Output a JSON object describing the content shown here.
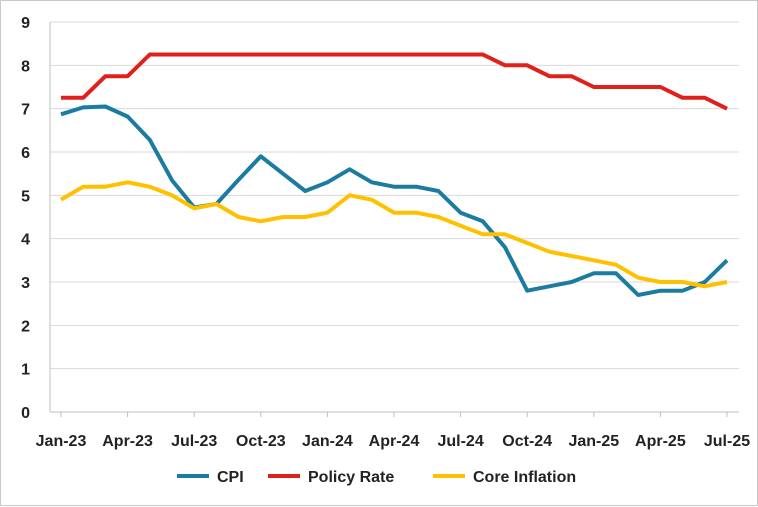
{
  "chart_data": {
    "type": "line",
    "title": "",
    "xlabel": "",
    "ylabel": "",
    "ylim": [
      0,
      9
    ],
    "yticks": [
      "0",
      "1",
      "2",
      "3",
      "4",
      "5",
      "6",
      "7",
      "8",
      "9"
    ],
    "xticks": [
      {
        "label": "Jan-23",
        "month": 0
      },
      {
        "label": "Apr-23",
        "month": 3
      },
      {
        "label": "Jul-23",
        "month": 6
      },
      {
        "label": "Oct-23",
        "month": 9
      },
      {
        "label": "Jan-24",
        "month": 12
      },
      {
        "label": "Apr-24",
        "month": 15
      },
      {
        "label": "Jul-24",
        "month": 18
      },
      {
        "label": "Oct-24",
        "month": 21
      },
      {
        "label": "Jan-25",
        "month": 24
      },
      {
        "label": "Apr-25",
        "month": 27
      },
      {
        "label": "Jul-25",
        "month": 30
      }
    ],
    "grid": true,
    "legend": "bottom",
    "series": [
      {
        "name": "CPI",
        "color": "#1B7BA0",
        "values": [
          6.87,
          7.03,
          7.05,
          6.82,
          6.28,
          5.35,
          4.72,
          4.8,
          5.36,
          5.9,
          5.5,
          5.1,
          5.3,
          5.6,
          5.3,
          5.2,
          5.2,
          5.1,
          4.6,
          4.4,
          3.8,
          2.8,
          2.9,
          3.0,
          3.2,
          3.2,
          2.7,
          2.8,
          2.8,
          3.0,
          3.5
        ]
      },
      {
        "name": "Policy Rate",
        "color": "#E0201B",
        "values": [
          7.25,
          7.25,
          7.75,
          7.75,
          8.25,
          8.25,
          8.25,
          8.25,
          8.25,
          8.25,
          8.25,
          8.25,
          8.25,
          8.25,
          8.25,
          8.25,
          8.25,
          8.25,
          8.25,
          8.25,
          8.0,
          8.0,
          7.75,
          7.75,
          7.5,
          7.5,
          7.5,
          7.5,
          7.25,
          7.25,
          7.0
        ]
      },
      {
        "name": "Core Inflation",
        "color": "#FFC000",
        "values": [
          4.9,
          5.2,
          5.2,
          5.3,
          5.2,
          5.0,
          4.7,
          4.8,
          4.5,
          4.4,
          4.5,
          4.5,
          4.6,
          5.0,
          4.9,
          4.6,
          4.6,
          4.5,
          4.3,
          4.1,
          4.1,
          3.9,
          3.7,
          3.6,
          3.5,
          3.4,
          3.1,
          3.0,
          3.0,
          2.9,
          3.0
        ]
      }
    ]
  }
}
